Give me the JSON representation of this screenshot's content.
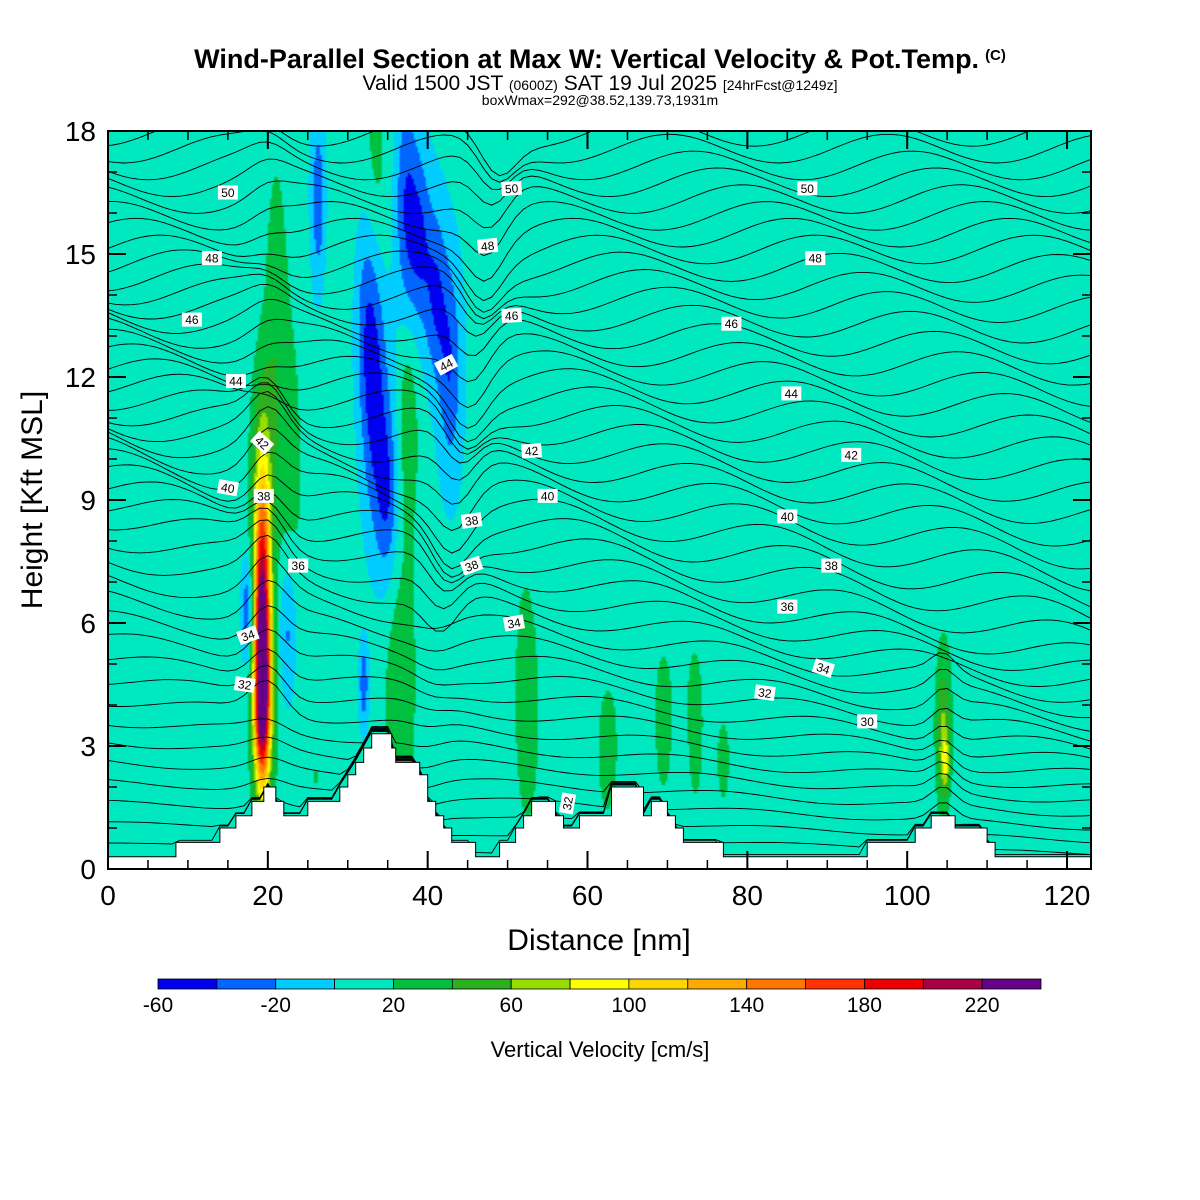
{
  "header": {
    "title": "Wind-Parallel Section at Max W: Vertical Velocity & Pot.Temp.",
    "title_mark": "(C)",
    "subtitle_a": "Valid 1500 JST",
    "subtitle_b": "(0600Z)",
    "subtitle_c": "SAT 19 Jul 2025",
    "subtitle_d": "[24hrFcst@1249z]",
    "subsubtitle": "boxWmax=292@38.52,139.73,1931m"
  },
  "chart_data": {
    "type": "heatmap",
    "xlabel": "Distance [nm]",
    "ylabel": "Height [Kft MSL]",
    "xlim": [
      0,
      123
    ],
    "ylim": [
      0,
      18
    ],
    "x_ticks": [
      0,
      20,
      40,
      60,
      80,
      100,
      120
    ],
    "y_ticks": [
      0,
      3,
      6,
      9,
      12,
      15,
      18
    ],
    "background_color": "#00ccff",
    "colorbar": {
      "title": "Vertical Velocity [cm/s]",
      "bounds": [
        -60,
        -40,
        -20,
        0,
        20,
        40,
        60,
        80,
        100,
        120,
        140,
        160,
        180,
        200,
        220,
        240
      ],
      "colors": [
        "#0000ee",
        "#0066ff",
        "#00ccff",
        "#00e8c0",
        "#00c040",
        "#2cb020",
        "#99dd00",
        "#ffff00",
        "#ffd700",
        "#ffaa00",
        "#ff7700",
        "#ff3300",
        "#ee0000",
        "#aa0044",
        "#660088"
      ],
      "labels": [
        "-60",
        "-20",
        "20",
        "60",
        "100",
        "140",
        "180",
        "220"
      ],
      "label_values": [
        -60,
        -20,
        20,
        60,
        100,
        140,
        180,
        220
      ]
    },
    "terrain": [
      [
        0,
        0.3
      ],
      [
        8.5,
        0.3
      ],
      [
        8.5,
        0.65
      ],
      [
        14,
        0.65
      ],
      [
        14,
        1.0
      ],
      [
        16,
        1.0
      ],
      [
        16,
        1.3
      ],
      [
        18,
        1.3
      ],
      [
        18,
        1.65
      ],
      [
        19.5,
        1.65
      ],
      [
        19.5,
        2.0
      ],
      [
        21,
        2.0
      ],
      [
        21,
        1.65
      ],
      [
        22,
        1.65
      ],
      [
        22,
        1.3
      ],
      [
        25,
        1.3
      ],
      [
        25,
        1.65
      ],
      [
        29,
        1.65
      ],
      [
        29,
        2.0
      ],
      [
        30,
        2.0
      ],
      [
        30,
        2.3
      ],
      [
        31,
        2.3
      ],
      [
        31,
        2.6
      ],
      [
        32,
        2.6
      ],
      [
        32,
        2.95
      ],
      [
        33,
        2.95
      ],
      [
        33,
        3.3
      ],
      [
        35.5,
        3.3
      ],
      [
        35.5,
        2.95
      ],
      [
        36,
        2.95
      ],
      [
        36,
        2.6
      ],
      [
        39,
        2.6
      ],
      [
        39,
        2.3
      ],
      [
        40,
        2.3
      ],
      [
        40,
        1.65
      ],
      [
        41,
        1.65
      ],
      [
        41,
        1.3
      ],
      [
        42,
        1.3
      ],
      [
        42,
        1.0
      ],
      [
        43,
        1.0
      ],
      [
        43,
        0.65
      ],
      [
        46,
        0.65
      ],
      [
        46,
        0.3
      ],
      [
        49,
        0.3
      ],
      [
        49,
        0.65
      ],
      [
        51,
        0.65
      ],
      [
        51,
        1.0
      ],
      [
        52,
        1.0
      ],
      [
        52,
        1.3
      ],
      [
        53,
        1.3
      ],
      [
        53,
        1.65
      ],
      [
        56,
        1.65
      ],
      [
        56,
        1.3
      ],
      [
        57,
        1.3
      ],
      [
        57,
        1.0
      ],
      [
        59,
        1.0
      ],
      [
        59,
        1.3
      ],
      [
        63,
        1.3
      ],
      [
        63,
        2.0
      ],
      [
        67,
        2.0
      ],
      [
        67,
        1.3
      ],
      [
        68,
        1.3
      ],
      [
        68,
        1.65
      ],
      [
        70,
        1.65
      ],
      [
        70,
        1.3
      ],
      [
        71,
        1.3
      ],
      [
        71,
        1.0
      ],
      [
        72,
        1.0
      ],
      [
        72,
        0.65
      ],
      [
        77,
        0.65
      ],
      [
        77,
        0.3
      ],
      [
        95,
        0.3
      ],
      [
        95,
        0.65
      ],
      [
        101,
        0.65
      ],
      [
        101,
        1.0
      ],
      [
        103,
        1.0
      ],
      [
        103,
        1.3
      ],
      [
        106,
        1.3
      ],
      [
        106,
        1.0
      ],
      [
        110,
        1.0
      ],
      [
        110,
        0.65
      ],
      [
        111,
        0.65
      ],
      [
        111,
        0.3
      ],
      [
        123,
        0.3
      ]
    ],
    "w_features": [
      {
        "x": 7.5,
        "y": 8.5,
        "sx": 1.5,
        "sy": 3.5,
        "a": 10
      },
      {
        "x": 7,
        "y": 3,
        "sx": 2,
        "sy": 1.5,
        "a": 8
      },
      {
        "x": 12,
        "y": 4.5,
        "sx": 1.5,
        "sy": 1.5,
        "a": 9
      },
      {
        "x": 10,
        "y": 13,
        "sx": 1.5,
        "sy": 3,
        "a": 8
      },
      {
        "x": 15,
        "y": 11,
        "sx": 1.2,
        "sy": 2,
        "a": 9
      },
      {
        "x": 17.5,
        "y": 6.5,
        "sx": 1.2,
        "sy": 2.5,
        "a": 10
      },
      {
        "x": 19.5,
        "y": 10.5,
        "sx": 1.2,
        "sy": 2,
        "a": 30
      },
      {
        "x": 22.5,
        "y": 10,
        "sx": 1.4,
        "sy": 3,
        "a": 25
      },
      {
        "x": 21,
        "y": 14.5,
        "sx": 1.0,
        "sy": 2.5,
        "a": 22
      },
      {
        "x": 20,
        "y": 3.5,
        "sx": 1.6,
        "sy": 1.6,
        "a": 15
      },
      {
        "x": 19.3,
        "y": 6.2,
        "sx": 0.75,
        "sy": 2.3,
        "a": 220
      },
      {
        "x": 19.3,
        "y": 3.8,
        "sx": 0.7,
        "sy": 1.3,
        "a": 130
      },
      {
        "x": 17.5,
        "y": 6.3,
        "sx": 0.6,
        "sy": 1.0,
        "a": -55
      },
      {
        "x": 22.5,
        "y": 5.8,
        "sx": 0.8,
        "sy": 1.4,
        "a": -40
      },
      {
        "x": 26.3,
        "y": 16.3,
        "sx": 0.6,
        "sy": 1.4,
        "a": -42
      },
      {
        "x": 26,
        "y": 5,
        "sx": 2.5,
        "sy": 2.5,
        "a": 10
      },
      {
        "x": 26,
        "y": 2,
        "sx": 1.5,
        "sy": 1,
        "a": 10
      },
      {
        "x": 30,
        "y": 14,
        "sx": 2,
        "sy": 4,
        "a": 8
      },
      {
        "x": 33.5,
        "y": 17,
        "sx": 1.2,
        "sy": 2,
        "a": 22
      },
      {
        "x": 38,
        "y": 9.5,
        "sx": 1.5,
        "sy": 3,
        "a": 8
      },
      {
        "x": 32.5,
        "y": 13.5,
        "sx": 1.2,
        "sy": 2.0,
        "a": -42
      },
      {
        "x": 33.5,
        "y": 11.0,
        "sx": 1.2,
        "sy": 2.0,
        "a": -42
      },
      {
        "x": 35.0,
        "y": 9.0,
        "sx": 1.0,
        "sy": 1.5,
        "a": -42
      },
      {
        "x": 37.3,
        "y": 16.2,
        "sx": 1.0,
        "sy": 1.9,
        "a": -42
      },
      {
        "x": 39.0,
        "y": 15.3,
        "sx": 1.0,
        "sy": 1.5,
        "a": -42
      },
      {
        "x": 41.0,
        "y": 14.0,
        "sx": 1.0,
        "sy": 1.5,
        "a": -42
      },
      {
        "x": 42.8,
        "y": 12.2,
        "sx": 1.0,
        "sy": 1.8,
        "a": -42
      },
      {
        "x": 37.5,
        "y": 11.0,
        "sx": 0.8,
        "sy": 1.5,
        "a": 25
      },
      {
        "x": 36.5,
        "y": 4.0,
        "sx": 1.5,
        "sy": 2.8,
        "a": 30
      },
      {
        "x": 32,
        "y": 4.5,
        "sx": 0.4,
        "sy": 0.7,
        "a": -42
      },
      {
        "x": 44,
        "y": 2.5,
        "sx": 1.5,
        "sy": 1.5,
        "a": 10
      },
      {
        "x": 52.5,
        "y": 3.5,
        "sx": 1.0,
        "sy": 1.8,
        "a": 30
      },
      {
        "x": 51,
        "y": 7,
        "sx": 2,
        "sy": 3,
        "a": 8
      },
      {
        "x": 56,
        "y": 10,
        "sx": 4,
        "sy": 3,
        "a": 9
      },
      {
        "x": 56,
        "y": 16,
        "sx": 2,
        "sy": 2,
        "a": 9
      },
      {
        "x": 62.5,
        "y": 2.8,
        "sx": 1.2,
        "sy": 1.5,
        "a": 22
      },
      {
        "x": 65,
        "y": 11.5,
        "sx": 3,
        "sy": 3,
        "a": 9
      },
      {
        "x": 72,
        "y": 14,
        "sx": 4,
        "sy": 2.5,
        "a": 9
      },
      {
        "x": 69.5,
        "y": 3.2,
        "sx": 0.8,
        "sy": 1.2,
        "a": 22
      },
      {
        "x": 73.5,
        "y": 3.2,
        "sx": 0.8,
        "sy": 1.5,
        "a": 22
      },
      {
        "x": 77,
        "y": 2.6,
        "sx": 0.8,
        "sy": 1.0,
        "a": 21
      },
      {
        "x": 70,
        "y": 5,
        "sx": 4,
        "sy": 1.5,
        "a": 9
      },
      {
        "x": 85,
        "y": 7.5,
        "sx": 5,
        "sy": 1.8,
        "a": 10
      },
      {
        "x": 86,
        "y": 17,
        "sx": 4,
        "sy": 1.5,
        "a": 9
      },
      {
        "x": 88,
        "y": 13,
        "sx": 3,
        "sy": 2,
        "a": 9
      },
      {
        "x": 95,
        "y": 9,
        "sx": 5,
        "sy": 3.5,
        "a": 10
      },
      {
        "x": 100,
        "y": 15,
        "sx": 4,
        "sy": 3,
        "a": 9
      },
      {
        "x": 108,
        "y": 6.5,
        "sx": 6,
        "sy": 4,
        "a": 10
      },
      {
        "x": 115,
        "y": 11.5,
        "sx": 5,
        "sy": 3,
        "a": 9
      },
      {
        "x": 116,
        "y": 3,
        "sx": 4,
        "sy": 1.5,
        "a": 9
      },
      {
        "x": 104.5,
        "y": 3.2,
        "sx": 0.6,
        "sy": 1.2,
        "a": 55
      },
      {
        "x": 104.8,
        "y": 2.6,
        "sx": 0.35,
        "sy": 0.4,
        "a": 45
      },
      {
        "x": 99,
        "y": 1.2,
        "sx": 2,
        "sy": 0.8,
        "a": 10
      }
    ],
    "theta_labels": [
      {
        "x": 15,
        "y": 16.5,
        "text": "50",
        "angle": 0
      },
      {
        "x": 50.5,
        "y": 16.6,
        "text": "50",
        "angle": -4
      },
      {
        "x": 87.5,
        "y": 16.6,
        "text": "50",
        "angle": 0
      },
      {
        "x": 13,
        "y": 14.9,
        "text": "48",
        "angle": 0
      },
      {
        "x": 47.5,
        "y": 15.2,
        "text": "48",
        "angle": -6
      },
      {
        "x": 88.5,
        "y": 14.9,
        "text": "48",
        "angle": 0
      },
      {
        "x": 10.5,
        "y": 13.4,
        "text": "46",
        "angle": 0
      },
      {
        "x": 50.5,
        "y": 13.5,
        "text": "46",
        "angle": -3
      },
      {
        "x": 78,
        "y": 13.3,
        "text": "46",
        "angle": 0
      },
      {
        "x": 16,
        "y": 11.9,
        "text": "44",
        "angle": 0
      },
      {
        "x": 42.3,
        "y": 12.3,
        "text": "44",
        "angle": -28
      },
      {
        "x": 85.5,
        "y": 11.6,
        "text": "44",
        "angle": 0
      },
      {
        "x": 19.3,
        "y": 10.4,
        "text": "42",
        "angle": 42
      },
      {
        "x": 53,
        "y": 10.2,
        "text": "42",
        "angle": -4
      },
      {
        "x": 93,
        "y": 10.1,
        "text": "42",
        "angle": 0
      },
      {
        "x": 15,
        "y": 9.3,
        "text": "40",
        "angle": 10
      },
      {
        "x": 55,
        "y": 9.1,
        "text": "40",
        "angle": 0
      },
      {
        "x": 85,
        "y": 8.6,
        "text": "40",
        "angle": 0
      },
      {
        "x": 19.5,
        "y": 9.1,
        "text": "38",
        "angle": 0
      },
      {
        "x": 45.5,
        "y": 8.5,
        "text": "38",
        "angle": -8
      },
      {
        "x": 45.5,
        "y": 7.4,
        "text": "38",
        "angle": -20
      },
      {
        "x": 90.5,
        "y": 7.4,
        "text": "38",
        "angle": 0
      },
      {
        "x": 23.8,
        "y": 7.4,
        "text": "36",
        "angle": 0
      },
      {
        "x": 85,
        "y": 6.4,
        "text": "36",
        "angle": 0
      },
      {
        "x": 17.5,
        "y": 5.7,
        "text": "34",
        "angle": -20
      },
      {
        "x": 50.8,
        "y": 6.0,
        "text": "34",
        "angle": -10
      },
      {
        "x": 89.5,
        "y": 4.9,
        "text": "34",
        "angle": 18
      },
      {
        "x": 17.1,
        "y": 4.5,
        "text": "32",
        "angle": 8
      },
      {
        "x": 82.2,
        "y": 4.3,
        "text": "32",
        "angle": 8
      },
      {
        "x": 57.5,
        "y": 1.6,
        "text": "32",
        "angle": -80
      },
      {
        "x": 95,
        "y": 3.6,
        "text": "30",
        "angle": 0
      }
    ]
  }
}
